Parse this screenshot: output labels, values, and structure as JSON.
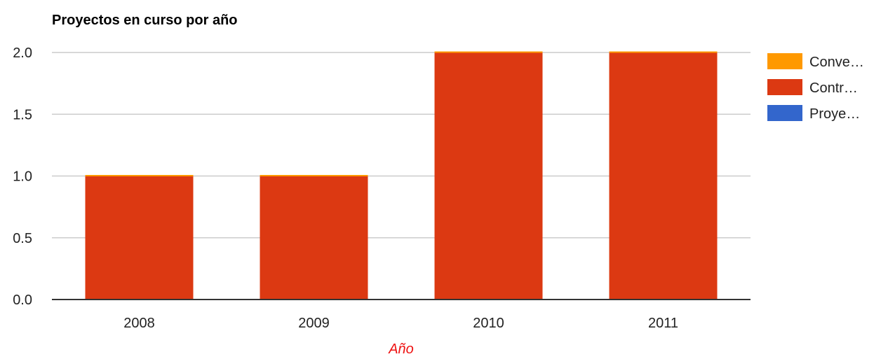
{
  "chart_data": {
    "type": "bar",
    "stacked": true,
    "title": "Proyectos en curso por año",
    "xlabel": "Año",
    "ylabel": "",
    "categories": [
      "2008",
      "2009",
      "2010",
      "2011"
    ],
    "series": [
      {
        "name": "Proye…",
        "color": "#3366cc",
        "values": [
          0,
          0,
          0,
          0
        ]
      },
      {
        "name": "Contr…",
        "color": "#dc3912",
        "values": [
          1,
          1,
          2,
          2
        ]
      },
      {
        "name": "Conve…",
        "color": "#ff9900",
        "values": [
          0,
          0,
          0,
          0
        ]
      }
    ],
    "legend_order": [
      "Conve…",
      "Contr…",
      "Proye…"
    ],
    "yticks": [
      "0.0",
      "0.5",
      "1.0",
      "1.5",
      "2.0"
    ],
    "ylim": [
      0,
      2
    ],
    "grid": true,
    "legend_position": "right",
    "xlabel_color": "#ee1111"
  }
}
